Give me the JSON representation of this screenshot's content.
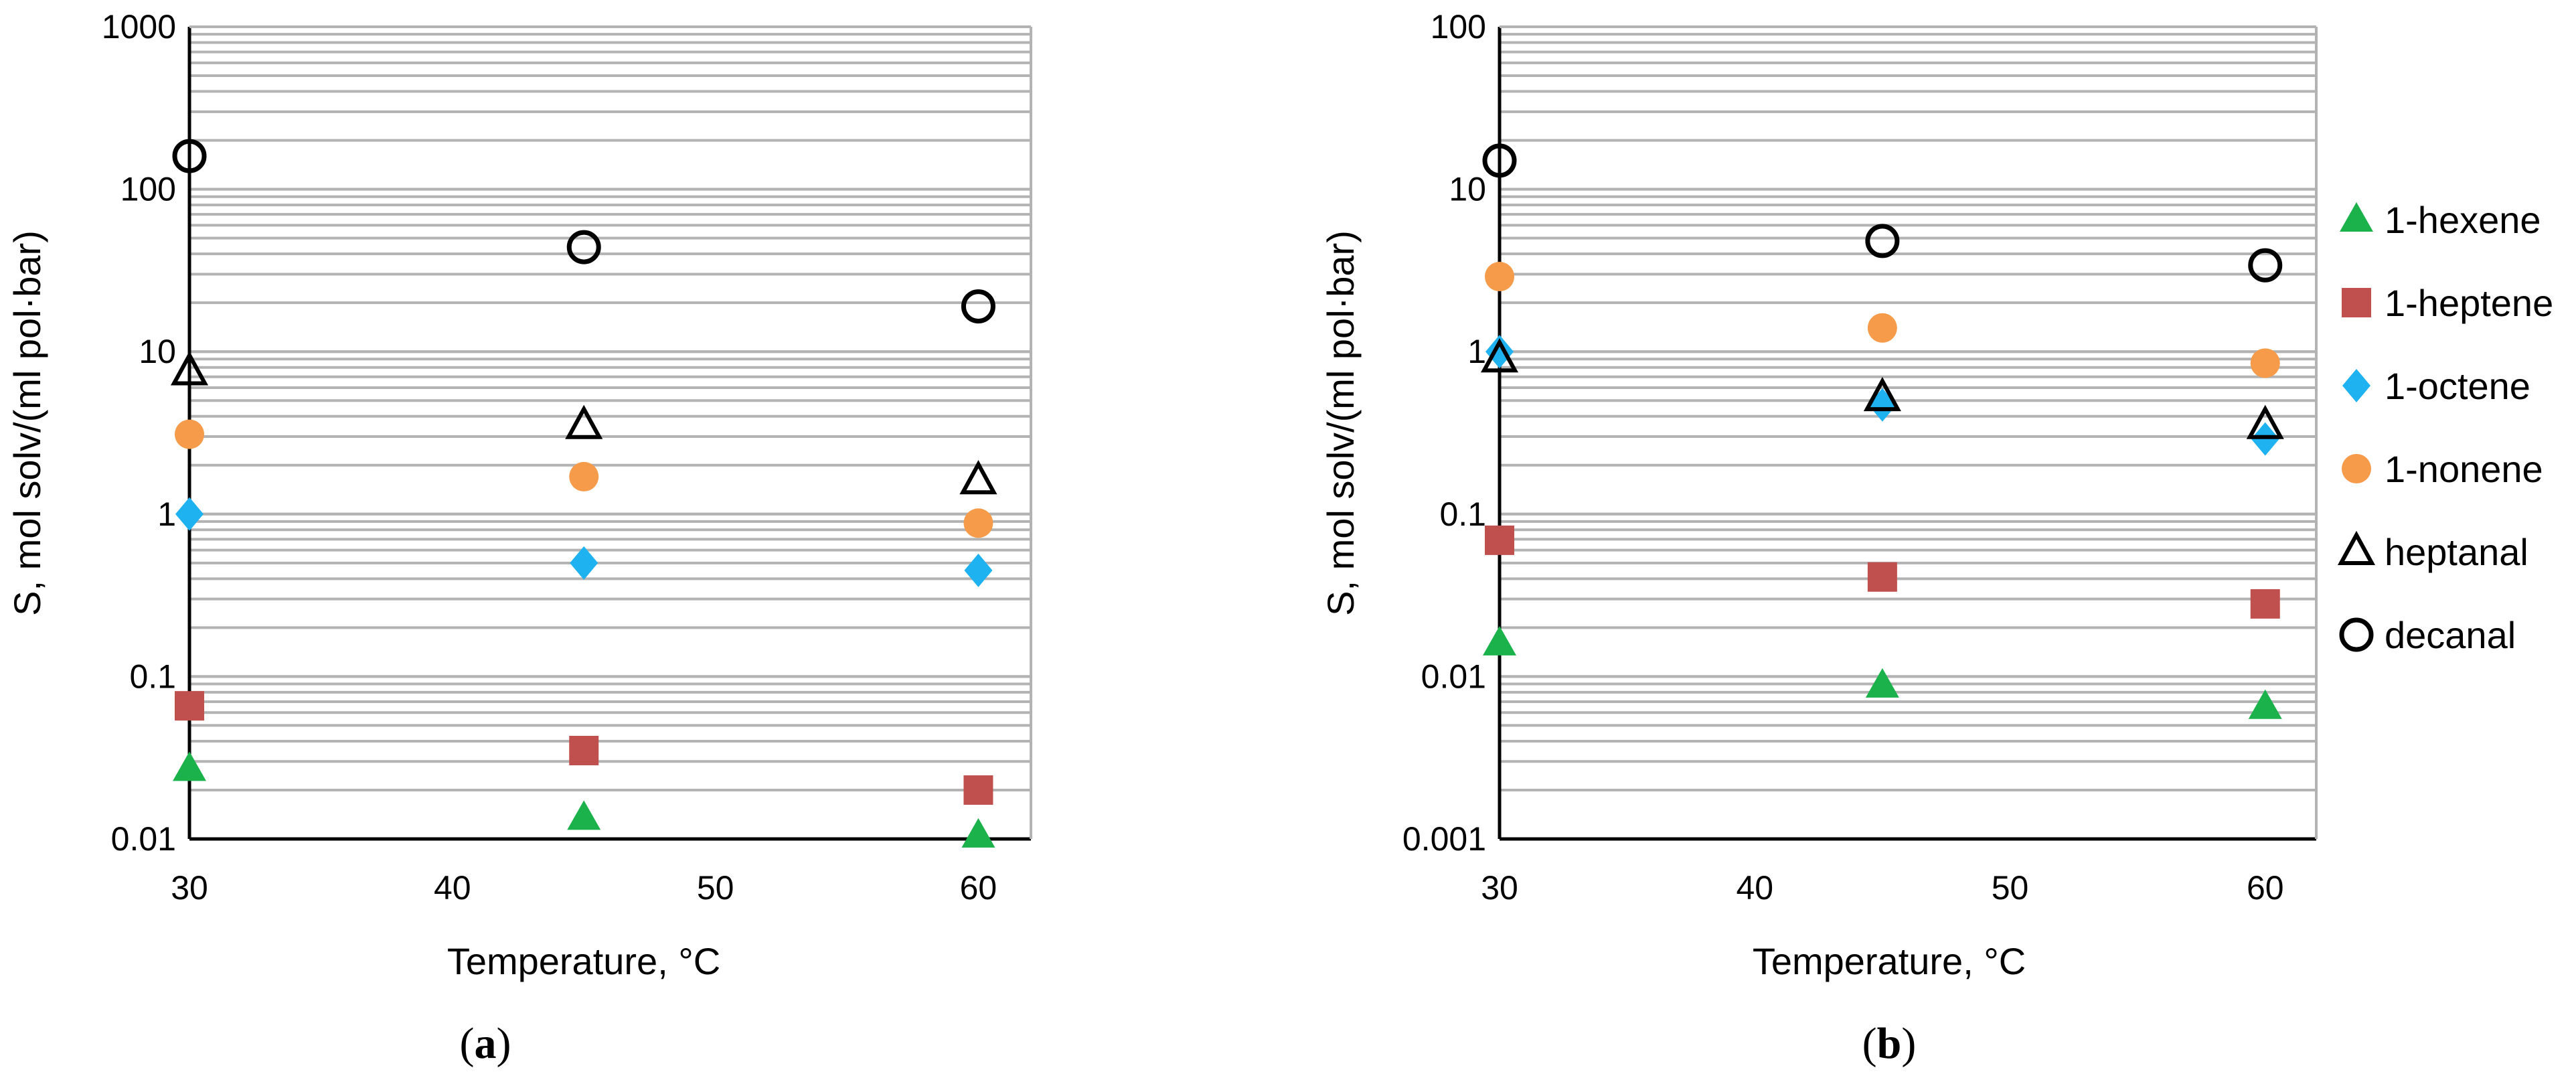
{
  "chart_data": [
    {
      "type": "scatter",
      "panel_label": "(a)",
      "panel_label_paren_open": "(",
      "panel_label_letter": "a",
      "panel_label_paren_close": ")",
      "xlabel": "Temperature, °C",
      "ylabel": "S, mol solv/(ml pol·bar)",
      "x_scale": "linear",
      "y_scale": "log",
      "xlim": [
        30,
        62
      ],
      "ylim": [
        0.01,
        1000
      ],
      "x_ticks": [
        30,
        40,
        50,
        60
      ],
      "x_tick_labels": [
        "30",
        "40",
        "50",
        "60"
      ],
      "y_ticks": [
        0.01,
        0.1,
        1,
        10,
        100,
        1000
      ],
      "y_tick_labels": [
        "0.01",
        "0.1",
        "1",
        "10",
        "100",
        "1000"
      ],
      "grid": "horizontal minor",
      "x": [
        30,
        45,
        60
      ],
      "series": [
        {
          "name": "1-hexene",
          "marker": "triangle",
          "values": [
            0.027,
            0.0135,
            0.0105
          ]
        },
        {
          "name": "1-heptene",
          "marker": "square",
          "values": [
            0.066,
            0.035,
            0.02
          ]
        },
        {
          "name": "1-octene",
          "marker": "diamond",
          "values": [
            1.0,
            0.5,
            0.45
          ]
        },
        {
          "name": "1-nonene",
          "marker": "circle",
          "values": [
            3.1,
            1.7,
            0.88
          ]
        },
        {
          "name": "heptanal",
          "marker": "open-triangle",
          "values": [
            7.5,
            3.5,
            1.6
          ]
        },
        {
          "name": "decanal",
          "marker": "open-circle",
          "values": [
            160,
            44,
            19
          ]
        }
      ]
    },
    {
      "type": "scatter",
      "panel_label": "(b)",
      "panel_label_paren_open": "(",
      "panel_label_letter": "b",
      "panel_label_paren_close": ")",
      "xlabel": "Temperature, °C",
      "ylabel": "S, mol solv/(ml pol·bar)",
      "x_scale": "linear",
      "y_scale": "log",
      "xlim": [
        30,
        62
      ],
      "ylim": [
        0.001,
        100
      ],
      "x_ticks": [
        30,
        40,
        50,
        60
      ],
      "x_tick_labels": [
        "30",
        "40",
        "50",
        "60"
      ],
      "y_ticks": [
        0.001,
        0.01,
        0.1,
        1,
        10,
        100
      ],
      "y_tick_labels": [
        "0.001",
        "0.01",
        "0.1",
        "1",
        "10",
        "100"
      ],
      "grid": "horizontal minor",
      "x": [
        30,
        45,
        60
      ],
      "series": [
        {
          "name": "1-hexene",
          "marker": "triangle",
          "values": [
            0.016,
            0.0088,
            0.0065
          ]
        },
        {
          "name": "1-heptene",
          "marker": "square",
          "values": [
            0.069,
            0.041,
            0.028
          ]
        },
        {
          "name": "1-octene",
          "marker": "diamond",
          "values": [
            1.0,
            0.47,
            0.29
          ]
        },
        {
          "name": "1-nonene",
          "marker": "circle",
          "values": [
            2.9,
            1.4,
            0.85
          ]
        },
        {
          "name": "heptanal",
          "marker": "open-triangle",
          "values": [
            0.9,
            0.52,
            0.35
          ]
        },
        {
          "name": "decanal",
          "marker": "open-circle",
          "values": [
            15,
            4.8,
            3.4
          ]
        }
      ]
    }
  ],
  "legend": {
    "items": [
      {
        "name": "1-hexene",
        "marker": "triangle"
      },
      {
        "name": "1-heptene",
        "marker": "square"
      },
      {
        "name": "1-octene",
        "marker": "diamond"
      },
      {
        "name": "1-nonene",
        "marker": "circle"
      },
      {
        "name": "heptanal",
        "marker": "open-triangle"
      },
      {
        "name": "decanal",
        "marker": "open-circle"
      }
    ]
  },
  "colors": {
    "1-hexene": "#1bb24b",
    "1-heptene": "#c0504d",
    "1-octene": "#1fb2f0",
    "1-nonene": "#f59b4a",
    "heptanal": "#000000",
    "decanal": "#000000",
    "gridline": "#b3b3b3",
    "axis": "#000000"
  }
}
